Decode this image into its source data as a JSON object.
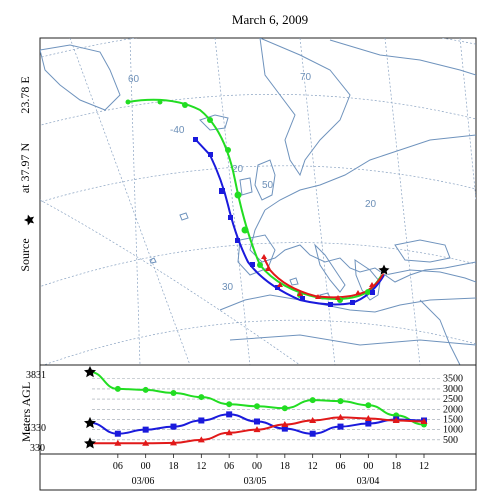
{
  "title": "March 6, 2009",
  "source": {
    "label": "Source",
    "at_text": "at 37.97 N",
    "lon_text": "23.78 E",
    "marker": "star-icon"
  },
  "map": {
    "graticule_labels": [
      "60",
      "70",
      "-40",
      "20",
      "50",
      "20",
      "30"
    ]
  },
  "profile": {
    "ylabel": "Meters AGL",
    "left_levels": [
      "3831",
      "1330",
      "330"
    ],
    "right_ticks": [
      "3500",
      "3000",
      "2500",
      "2000",
      "1500",
      "1000",
      "500"
    ],
    "time_ticks": [
      "06",
      "00",
      "18",
      "12",
      "06",
      "00",
      "18",
      "12",
      "06",
      "00",
      "18",
      "12"
    ],
    "date_labels": [
      "03/06",
      "03/05",
      "03/04"
    ]
  },
  "colors": {
    "green": "#22dd22",
    "blue": "#1a1adc",
    "red": "#e11919",
    "land": "#6f93bd",
    "grid": "#8aa3c2"
  },
  "chart_data": {
    "type": "line",
    "title": "",
    "xlabel": "",
    "ylabel": "Meters AGL",
    "x": [
      "06",
      "00",
      "18",
      "12",
      "06",
      "00",
      "18",
      "12",
      "06",
      "00",
      "18",
      "12"
    ],
    "ylim": [
      0,
      3831
    ],
    "series": [
      {
        "name": "",
        "start_height_m": 3831,
        "values": [
          3000,
          2950,
          2800,
          2600,
          2250,
          2150,
          2050,
          2450,
          2400,
          2200,
          1700,
          1250
        ]
      },
      {
        "name": "",
        "start_height_m": 1330,
        "values": [
          800,
          1000,
          1150,
          1450,
          1750,
          1400,
          1050,
          800,
          1150,
          1300,
          1500,
          1450
        ]
      },
      {
        "name": "",
        "start_height_m": 330,
        "values": [
          330,
          330,
          350,
          500,
          850,
          1000,
          1250,
          1450,
          1600,
          1550,
          1450,
          1400
        ]
      }
    ]
  }
}
